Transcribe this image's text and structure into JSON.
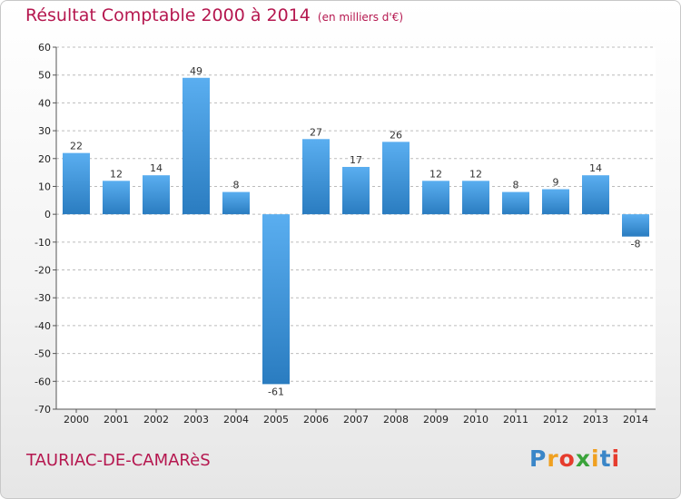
{
  "chart_data": {
    "type": "bar",
    "title": "Résultat Comptable 2000 à 2014",
    "subtitle": "(en milliers d'€)",
    "categories": [
      "2000",
      "2001",
      "2002",
      "2003",
      "2004",
      "2005",
      "2006",
      "2007",
      "2008",
      "2009",
      "2010",
      "2011",
      "2012",
      "2013",
      "2014"
    ],
    "values": [
      22,
      12,
      14,
      49,
      8,
      -61,
      27,
      17,
      26,
      12,
      12,
      8,
      9,
      14,
      -8
    ],
    "ylim": [
      -70,
      60
    ],
    "yticks": [
      60,
      50,
      40,
      30,
      20,
      10,
      0,
      -10,
      -20,
      -30,
      -40,
      -50,
      -60,
      -70
    ],
    "xlabel": "",
    "ylabel": "",
    "grid": "horizontal dashed",
    "legend": "none"
  },
  "commune": "TAURIAC-DE-CAMARèS",
  "logo": {
    "letters": [
      "P",
      "r",
      "o",
      "x",
      "i",
      "t",
      "i"
    ],
    "colors": [
      "#3a86c8",
      "#f0a020",
      "#e63c2d",
      "#3aa33a",
      "#f0a020",
      "#3a86c8",
      "#e63c2d"
    ]
  },
  "colors": {
    "title": "#b5174f",
    "bar_light": "#5aaef0",
    "bar_dark": "#2a7cc0"
  }
}
